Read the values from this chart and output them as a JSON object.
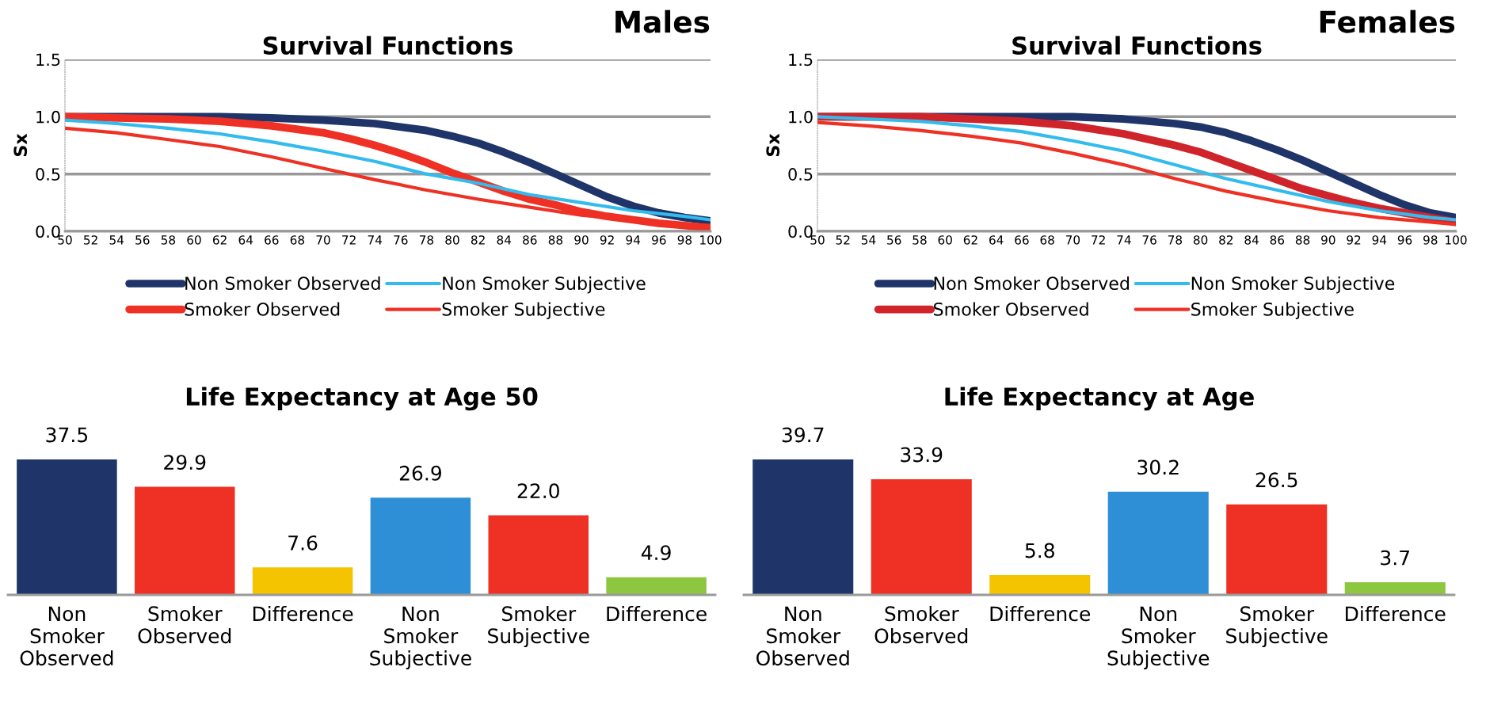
{
  "chart_data": [
    {
      "type": "line",
      "title": "Survival Functions",
      "subtitle": "Males",
      "ylabel": "Sx",
      "xlim": [
        50,
        100
      ],
      "xticks": [
        50,
        52,
        54,
        56,
        58,
        60,
        62,
        64,
        66,
        68,
        70,
        72,
        74,
        76,
        78,
        80,
        82,
        84,
        86,
        88,
        90,
        92,
        94,
        96,
        98,
        100
      ],
      "ylim": [
        0,
        1.5
      ],
      "yticks": [
        {
          "value": 0,
          "label": "0.0"
        },
        {
          "value": 0.5,
          "label": "0.5"
        },
        {
          "value": 1,
          "label": "1.0"
        },
        {
          "value": 1.5,
          "label": "1.5"
        }
      ],
      "grid": "y",
      "legend": "bottom",
      "marker": "none",
      "line_style": "solid",
      "series": [
        {
          "name": "Non Smoker Observed",
          "color": "#1f3468",
          "x": [
            50,
            54,
            58,
            62,
            66,
            70,
            74,
            78,
            80,
            82,
            84,
            86,
            88,
            90,
            92,
            94,
            96,
            98,
            100
          ],
          "values": [
            1.0,
            1.0,
            1.0,
            1.0,
            0.99,
            0.97,
            0.94,
            0.88,
            0.83,
            0.77,
            0.69,
            0.6,
            0.5,
            0.4,
            0.3,
            0.22,
            0.16,
            0.12,
            0.09
          ]
        },
        {
          "name": "Smoker Observed",
          "color": "#ee3124",
          "x": [
            50,
            54,
            58,
            62,
            66,
            70,
            72,
            74,
            76,
            78,
            80,
            82,
            84,
            86,
            88,
            90,
            92,
            94,
            96,
            98,
            100
          ],
          "values": [
            1.0,
            0.99,
            0.98,
            0.96,
            0.92,
            0.86,
            0.81,
            0.75,
            0.68,
            0.6,
            0.51,
            0.43,
            0.35,
            0.28,
            0.23,
            0.17,
            0.13,
            0.1,
            0.07,
            0.05,
            0.03
          ]
        },
        {
          "name": "Non Smoker Subjective",
          "color": "#33bbee",
          "x": [
            50,
            54,
            58,
            62,
            66,
            70,
            74,
            78,
            82,
            86,
            90,
            94,
            98,
            100
          ],
          "values": [
            0.97,
            0.94,
            0.9,
            0.85,
            0.78,
            0.7,
            0.61,
            0.5,
            0.42,
            0.32,
            0.25,
            0.18,
            0.13,
            0.1
          ]
        },
        {
          "name": "Smoker Subjective",
          "color": "#ee3124",
          "x": [
            50,
            54,
            58,
            62,
            66,
            70,
            74,
            78,
            82,
            86,
            90,
            94,
            98,
            100
          ],
          "values": [
            0.9,
            0.86,
            0.8,
            0.74,
            0.65,
            0.55,
            0.45,
            0.36,
            0.28,
            0.21,
            0.14,
            0.1,
            0.06,
            0.05
          ]
        }
      ]
    },
    {
      "type": "line",
      "title": "Survival Functions",
      "subtitle": "Females",
      "ylabel": "Sx",
      "xlim": [
        50,
        100
      ],
      "xticks": [
        50,
        52,
        54,
        56,
        58,
        60,
        62,
        64,
        66,
        68,
        70,
        72,
        74,
        76,
        78,
        80,
        82,
        84,
        86,
        88,
        90,
        92,
        94,
        96,
        98,
        100
      ],
      "ylim": [
        0,
        1.5
      ],
      "yticks": [
        {
          "value": 0,
          "label": "0.0"
        },
        {
          "value": 0.5,
          "label": "0.5"
        },
        {
          "value": 1,
          "label": "1.0"
        },
        {
          "value": 1.5,
          "label": "1.5"
        }
      ],
      "grid": "y",
      "legend": "bottom",
      "marker": "none",
      "line_style": "solid",
      "series": [
        {
          "name": "Non Smoker Observed",
          "color": "#1f3468",
          "x": [
            50,
            58,
            66,
            70,
            74,
            78,
            80,
            82,
            84,
            86,
            88,
            90,
            92,
            94,
            96,
            98,
            100
          ],
          "values": [
            1.0,
            1.0,
            1.0,
            1.0,
            0.98,
            0.94,
            0.91,
            0.86,
            0.79,
            0.71,
            0.62,
            0.52,
            0.42,
            0.32,
            0.23,
            0.16,
            0.12
          ]
        },
        {
          "name": "Smoker Observed",
          "color": "#d0242b",
          "x": [
            50,
            58,
            62,
            66,
            70,
            74,
            78,
            80,
            82,
            84,
            86,
            88,
            90,
            92,
            94,
            96,
            98,
            100
          ],
          "values": [
            1.0,
            1.0,
            0.98,
            0.96,
            0.92,
            0.85,
            0.75,
            0.69,
            0.61,
            0.53,
            0.45,
            0.37,
            0.31,
            0.25,
            0.2,
            0.16,
            0.12,
            0.08
          ]
        },
        {
          "name": "Non Smoker Subjective",
          "color": "#33bbee",
          "x": [
            50,
            54,
            58,
            62,
            66,
            70,
            74,
            78,
            82,
            86,
            90,
            94,
            98,
            100
          ],
          "values": [
            1.0,
            0.98,
            0.96,
            0.92,
            0.87,
            0.79,
            0.7,
            0.58,
            0.46,
            0.36,
            0.26,
            0.18,
            0.12,
            0.1
          ]
        },
        {
          "name": "Smoker Subjective",
          "color": "#ee3124",
          "x": [
            50,
            54,
            58,
            62,
            66,
            70,
            74,
            78,
            82,
            86,
            90,
            94,
            98,
            100
          ],
          "values": [
            0.95,
            0.92,
            0.88,
            0.83,
            0.77,
            0.68,
            0.58,
            0.46,
            0.35,
            0.26,
            0.18,
            0.12,
            0.08,
            0.06
          ]
        }
      ]
    },
    {
      "type": "bar",
      "title": "Life Expectancy at Age 50",
      "categories": [
        "Non\nSmoker\nObserved",
        "Smoker\nObserved",
        "Difference",
        "Non\nSmoker\nSubjective",
        "Smoker\nSubjective",
        "Difference"
      ],
      "values": [
        37.5,
        29.9,
        7.6,
        26.9,
        22.0,
        4.9
      ],
      "value_labels": [
        "37.5",
        "29.9",
        "7.6",
        "26.9",
        "22.0",
        "4.9"
      ],
      "colors": [
        "#1f3468",
        "#ee3124",
        "#f5c400",
        "#2e8fd6",
        "#ee3124",
        "#8dc63f"
      ],
      "tick_labels": "x"
    },
    {
      "type": "bar",
      "title": "Life Expectancy at Age",
      "categories": [
        "Non\nSmoker\nObserved",
        "Smoker\nObserved",
        "Difference",
        "Non\nSmoker\nSubjective",
        "Smoker\nSubjective",
        "Difference"
      ],
      "values": [
        39.7,
        33.9,
        5.8,
        30.2,
        26.5,
        3.7
      ],
      "value_labels": [
        "39.7",
        "33.9",
        "5.8",
        "30.2",
        "26.5",
        "3.7"
      ],
      "colors": [
        "#1f3468",
        "#ee3124",
        "#f5c400",
        "#2e8fd6",
        "#ee3124",
        "#8dc63f"
      ],
      "tick_labels": "x"
    }
  ]
}
